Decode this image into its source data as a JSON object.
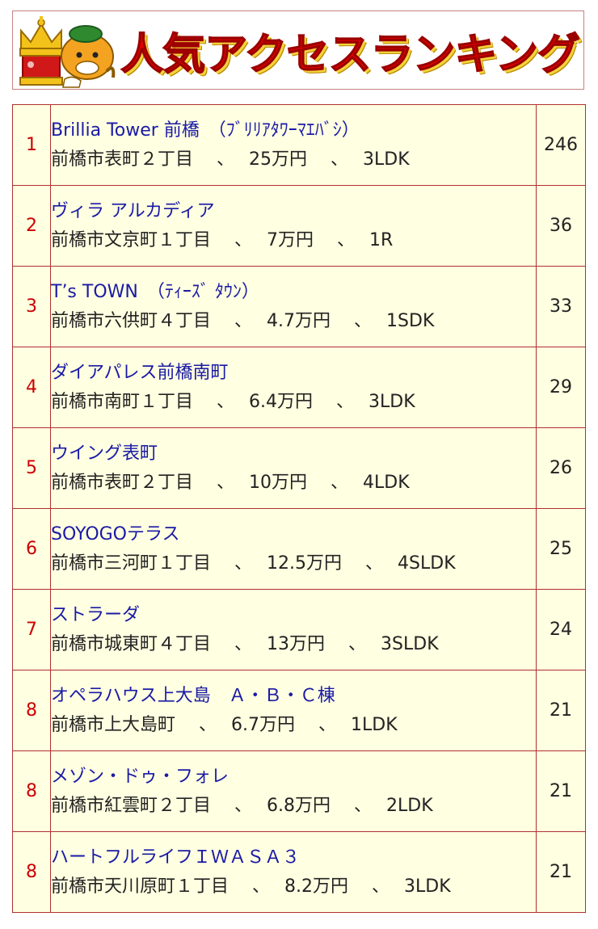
{
  "header": {
    "title": "人気アクセスランキング",
    "mascot_icon": "crown-mascot-icon"
  },
  "colors": {
    "rank": "#cc0000",
    "name": "#1a1aa6",
    "border": "#b03030",
    "row_bg": "#ffffe1",
    "title": "#e60000"
  },
  "rows": [
    {
      "rank": "1",
      "name": "Brillia Tower 前橋　（ﾌﾞﾘﾘｱﾀﾜｰﾏｴﾊﾞｼ）",
      "address": "前橋市表町２丁目",
      "price": "25万円",
      "layout": "3LDK",
      "count": "246"
    },
    {
      "rank": "2",
      "name": "ヴィラ アルカディア",
      "address": "前橋市文京町１丁目",
      "price": "7万円",
      "layout": "1R",
      "count": "36"
    },
    {
      "rank": "3",
      "name": "T’s TOWN　（ﾃｨｰｽﾞ ﾀｳﾝ）",
      "address": "前橋市六供町４丁目",
      "price": "4.7万円",
      "layout": "1SDK",
      "count": "33"
    },
    {
      "rank": "4",
      "name": "ダイアパレス前橋南町",
      "address": "前橋市南町１丁目",
      "price": "6.4万円",
      "layout": "3LDK",
      "count": "29"
    },
    {
      "rank": "5",
      "name": "ウイング表町",
      "address": "前橋市表町２丁目",
      "price": "10万円",
      "layout": "4LDK",
      "count": "26"
    },
    {
      "rank": "6",
      "name": "SOYOGOテラス",
      "address": "前橋市三河町１丁目",
      "price": "12.5万円",
      "layout": "4SLDK",
      "count": "25"
    },
    {
      "rank": "7",
      "name": "ストラーダ",
      "address": "前橋市城東町４丁目",
      "price": "13万円",
      "layout": "3SLDK",
      "count": "24"
    },
    {
      "rank": "8",
      "name": "オペラハウス上大島　Ａ・Ｂ・Ｃ棟",
      "address": "前橋市上大島町",
      "price": "6.7万円",
      "layout": "1LDK",
      "count": "21"
    },
    {
      "rank": "8",
      "name": "メゾン・ドゥ・フォレ",
      "address": "前橋市紅雲町２丁目",
      "price": "6.8万円",
      "layout": "2LDK",
      "count": "21"
    },
    {
      "rank": "8",
      "name": "ハートフルライフＩＷＡＳＡ３",
      "address": "前橋市天川原町１丁目",
      "price": "8.2万円",
      "layout": "3LDK",
      "count": "21"
    }
  ],
  "separator": "、"
}
